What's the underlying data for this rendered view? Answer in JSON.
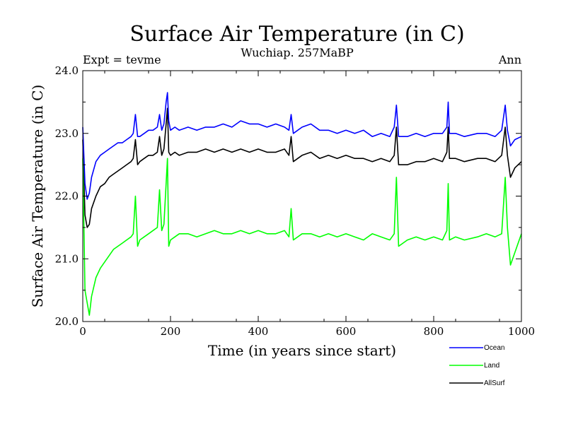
{
  "chart_data": {
    "type": "line",
    "title": "Surface Air Temperature (in C)",
    "subtitle": "Wuchiap. 257MaBP",
    "left_label": "Expt = tevme",
    "right_label": "Ann",
    "xlabel": "Time (in years since start)",
    "ylabel": "Surface Air Temperature (in C)",
    "xlim": [
      0,
      1000
    ],
    "ylim": [
      20.0,
      24.0
    ],
    "xticks": [
      0,
      200,
      400,
      600,
      800,
      1000
    ],
    "xtick_labels": [
      "0",
      "200",
      "400",
      "600",
      "800",
      "1000"
    ],
    "yticks": [
      20.0,
      21.0,
      22.0,
      23.0,
      24.0
    ],
    "ytick_labels": [
      "20.0",
      "21.0",
      "22.0",
      "23.0",
      "24.0"
    ],
    "grid": false,
    "legend_position": "bottom-right, below plot",
    "x": [
      0,
      5,
      10,
      15,
      20,
      30,
      40,
      50,
      60,
      70,
      80,
      90,
      100,
      110,
      115,
      120,
      125,
      130,
      140,
      150,
      160,
      170,
      175,
      180,
      185,
      190,
      193,
      196,
      200,
      210,
      220,
      240,
      260,
      280,
      300,
      320,
      340,
      360,
      380,
      400,
      420,
      440,
      460,
      470,
      475,
      480,
      500,
      520,
      540,
      560,
      580,
      600,
      620,
      640,
      660,
      680,
      700,
      710,
      715,
      720,
      740,
      760,
      780,
      800,
      820,
      830,
      833,
      836,
      850,
      870,
      900,
      920,
      940,
      955,
      963,
      968,
      975,
      985,
      1000
    ],
    "series": [
      {
        "name": "Ocean",
        "color": "#0000ff",
        "values": [
          23.1,
          22.2,
          21.95,
          22.05,
          22.3,
          22.55,
          22.65,
          22.7,
          22.75,
          22.8,
          22.85,
          22.85,
          22.9,
          22.95,
          23.0,
          23.3,
          22.95,
          22.95,
          23.0,
          23.05,
          23.05,
          23.1,
          23.3,
          23.05,
          23.15,
          23.5,
          23.65,
          23.2,
          23.05,
          23.1,
          23.05,
          23.1,
          23.05,
          23.1,
          23.1,
          23.15,
          23.1,
          23.2,
          23.15,
          23.15,
          23.1,
          23.15,
          23.1,
          23.05,
          23.3,
          23.0,
          23.1,
          23.15,
          23.05,
          23.05,
          23.0,
          23.05,
          23.0,
          23.05,
          22.95,
          23.0,
          22.95,
          23.1,
          23.45,
          22.95,
          22.95,
          23.0,
          22.95,
          23.0,
          23.0,
          23.1,
          23.5,
          23.0,
          23.0,
          22.95,
          23.0,
          23.0,
          22.95,
          23.05,
          23.45,
          23.05,
          22.8,
          22.9,
          22.95
        ]
      },
      {
        "name": "Land",
        "color": "#00ff00",
        "values": [
          22.6,
          20.5,
          20.3,
          20.1,
          20.4,
          20.7,
          20.85,
          20.95,
          21.05,
          21.15,
          21.2,
          21.25,
          21.3,
          21.35,
          21.4,
          22.0,
          21.2,
          21.3,
          21.35,
          21.4,
          21.45,
          21.5,
          22.1,
          21.45,
          21.55,
          22.2,
          22.6,
          21.2,
          21.3,
          21.35,
          21.4,
          21.4,
          21.35,
          21.4,
          21.45,
          21.4,
          21.4,
          21.45,
          21.4,
          21.45,
          21.4,
          21.4,
          21.45,
          21.35,
          21.8,
          21.3,
          21.4,
          21.4,
          21.35,
          21.4,
          21.35,
          21.4,
          21.35,
          21.3,
          21.4,
          21.35,
          21.3,
          21.4,
          22.3,
          21.2,
          21.3,
          21.35,
          21.3,
          21.35,
          21.3,
          21.45,
          22.2,
          21.3,
          21.35,
          21.3,
          21.35,
          21.4,
          21.35,
          21.4,
          22.3,
          21.5,
          20.9,
          21.1,
          21.4
        ]
      },
      {
        "name": "AllSurf",
        "color": "#000000",
        "values": [
          22.9,
          21.7,
          21.5,
          21.55,
          21.8,
          22.0,
          22.15,
          22.2,
          22.3,
          22.35,
          22.4,
          22.45,
          22.5,
          22.55,
          22.6,
          22.9,
          22.5,
          22.55,
          22.6,
          22.65,
          22.65,
          22.7,
          22.95,
          22.65,
          22.75,
          23.15,
          23.4,
          22.7,
          22.65,
          22.7,
          22.65,
          22.7,
          22.7,
          22.75,
          22.7,
          22.75,
          22.7,
          22.75,
          22.7,
          22.75,
          22.7,
          22.7,
          22.75,
          22.65,
          22.95,
          22.55,
          22.65,
          22.7,
          22.6,
          22.65,
          22.6,
          22.65,
          22.6,
          22.6,
          22.55,
          22.6,
          22.55,
          22.65,
          23.1,
          22.5,
          22.5,
          22.55,
          22.55,
          22.6,
          22.55,
          22.7,
          23.1,
          22.6,
          22.6,
          22.55,
          22.6,
          22.6,
          22.55,
          22.65,
          23.1,
          22.65,
          22.3,
          22.45,
          22.55
        ]
      }
    ]
  }
}
